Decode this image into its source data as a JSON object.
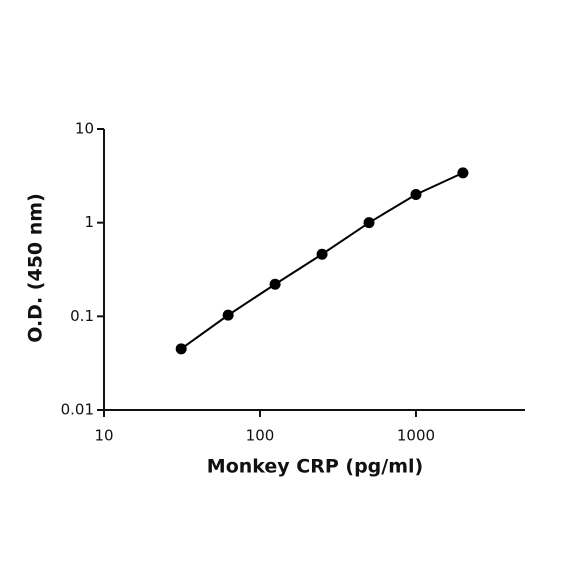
{
  "chart_data": {
    "type": "scatter",
    "x_label": "Monkey CRP (pg/ml)",
    "y_label": "O.D. (450 nm)",
    "x_scale": "log",
    "y_scale": "log",
    "xlim": [
      10,
      5000
    ],
    "ylim": [
      0.01,
      10
    ],
    "xticks": [
      10,
      100,
      1000
    ],
    "yticks": [
      0.01,
      0.1,
      1,
      10
    ],
    "connect": true,
    "series": [
      {
        "color": "#000000",
        "x": [
          31.25,
          62.5,
          125,
          250,
          500,
          1000,
          2000
        ],
        "values": [
          0.045,
          0.103,
          0.22,
          0.46,
          1.0,
          2.0,
          3.4
        ]
      }
    ]
  }
}
